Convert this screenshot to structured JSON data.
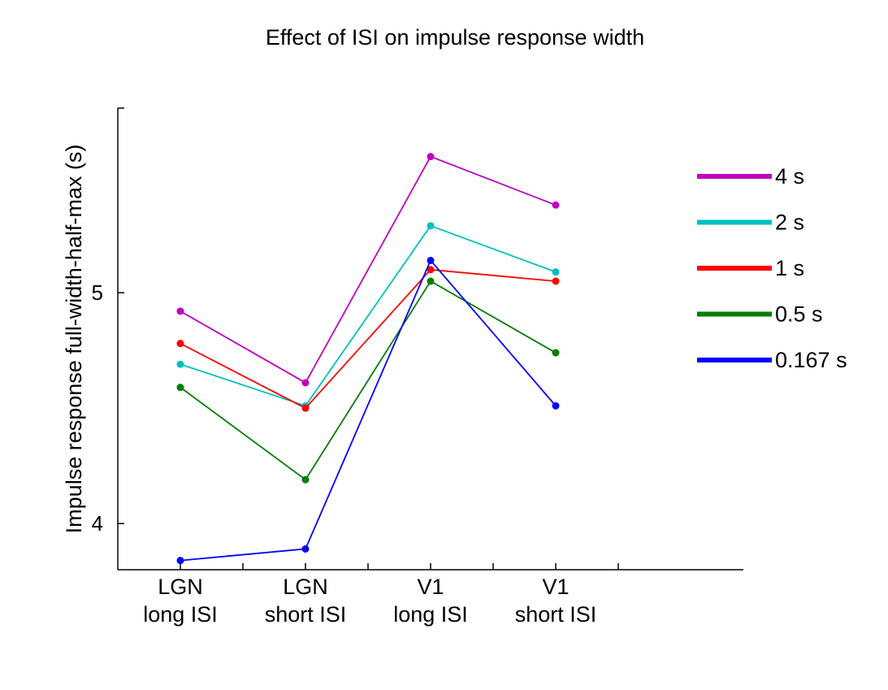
{
  "chart_data": {
    "type": "line",
    "title": "Effect of ISI on impulse response width",
    "xlabel": "",
    "ylabel": "Impulse response full-width-half-max (s)",
    "categories": [
      [
        "LGN",
        "long ISI"
      ],
      [
        "LGN",
        "short ISI"
      ],
      [
        "V1",
        "long ISI"
      ],
      [
        "V1",
        "short ISI"
      ]
    ],
    "xlim": [
      0.5,
      5.5
    ],
    "x_minor_ticks": [
      1.5,
      2.5,
      3.5,
      4.5
    ],
    "ylim": [
      3.8,
      5.8
    ],
    "y_ticks": [
      4,
      5
    ],
    "grid": false,
    "legend_position": "right",
    "series": [
      {
        "name": "4 s",
        "color": "#bf00bf",
        "values": [
          4.92,
          4.61,
          5.59,
          5.38
        ]
      },
      {
        "name": "2 s",
        "color": "#00bfbf",
        "values": [
          4.69,
          4.51,
          5.29,
          5.09
        ]
      },
      {
        "name": "1 s",
        "color": "#ff0000",
        "values": [
          4.78,
          4.5,
          5.1,
          5.05
        ]
      },
      {
        "name": "0.5 s",
        "color": "#007f00",
        "values": [
          4.59,
          4.19,
          5.05,
          4.74
        ]
      },
      {
        "name": "0.167 s",
        "color": "#0000ff",
        "values": [
          3.84,
          3.89,
          5.14,
          4.51
        ]
      }
    ]
  }
}
